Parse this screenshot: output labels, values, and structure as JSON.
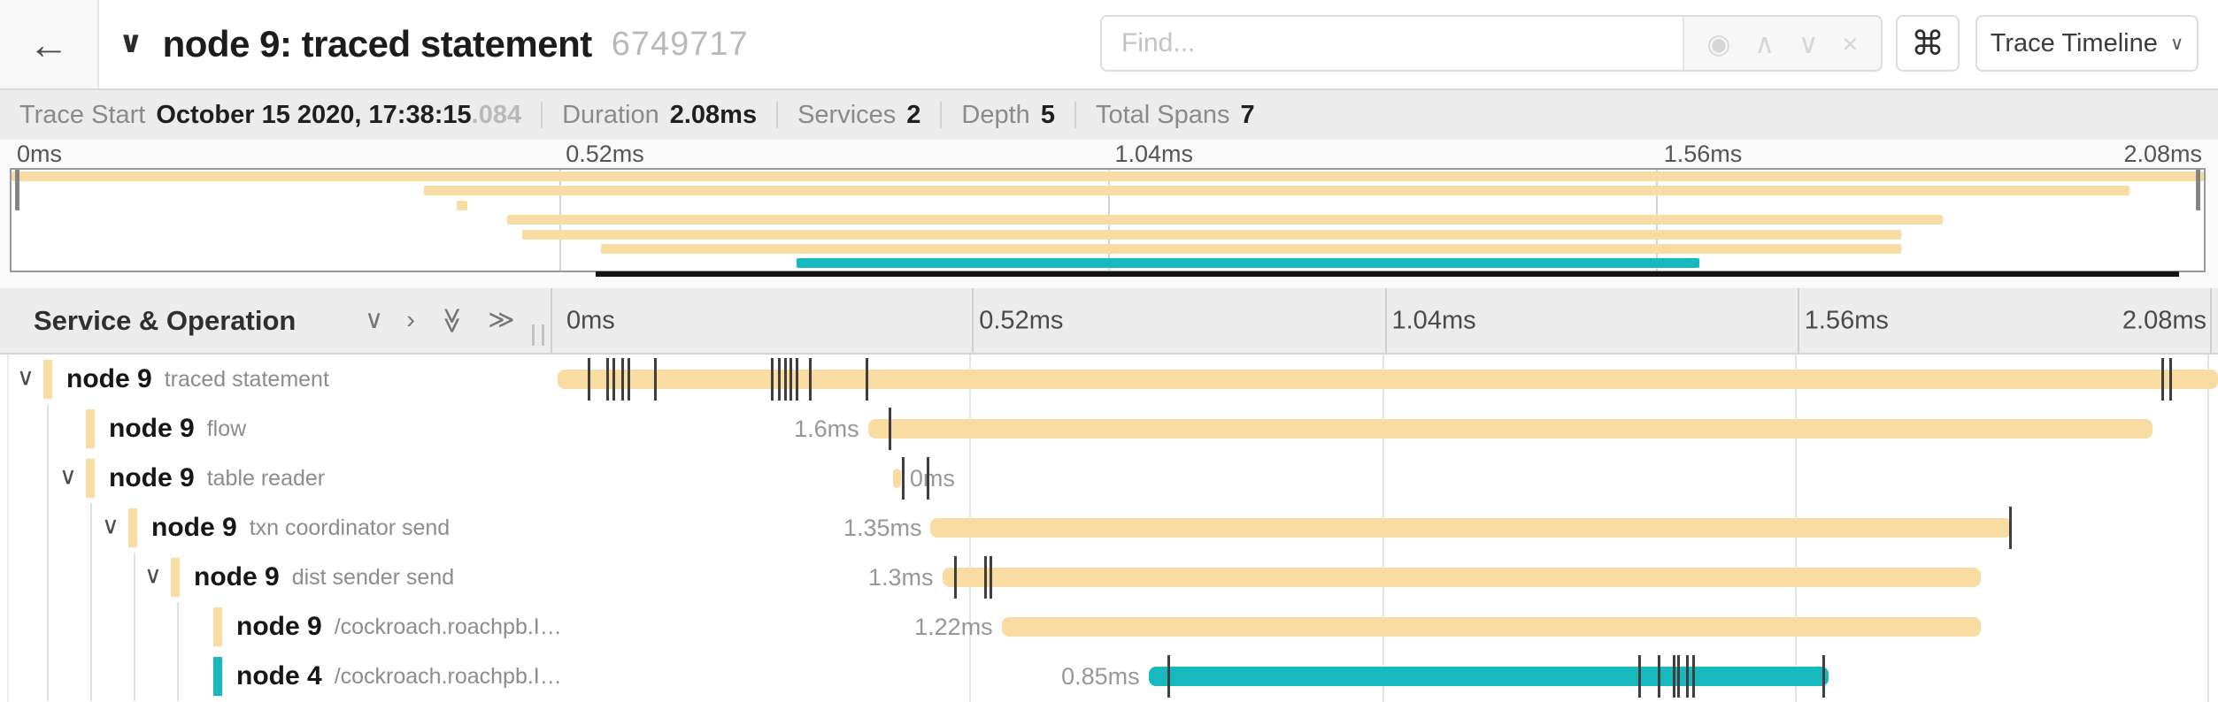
{
  "header": {
    "back_icon": "←",
    "collapse_icon": "∨",
    "title": "node 9: traced statement",
    "trace_id": "6749717",
    "find_placeholder": "Find...",
    "find_icons": [
      {
        "name": "match-target-icon",
        "glyph": "◉"
      },
      {
        "name": "prev-result-icon",
        "glyph": "∧"
      },
      {
        "name": "next-result-icon",
        "glyph": "∨"
      },
      {
        "name": "clear-search-icon",
        "glyph": "×"
      }
    ],
    "shortcut_button": "⌘",
    "view_dropdown": {
      "label": "Trace Timeline",
      "caret": "∨"
    }
  },
  "summary": {
    "items": [
      {
        "label": "Trace Start",
        "value": "October 15 2020, 17:38:15",
        "suffix": ".084"
      },
      {
        "label": "Duration",
        "value": "2.08ms"
      },
      {
        "label": "Services",
        "value": "2"
      },
      {
        "label": "Depth",
        "value": "5"
      },
      {
        "label": "Total Spans",
        "value": "7"
      }
    ]
  },
  "colors": {
    "amber": "#F8DCA1",
    "teal": "#17B8BE",
    "tick": "#3f3f3f"
  },
  "timeline": {
    "left_header": "Service & Operation",
    "collapse_icons": [
      {
        "name": "collapse-one-icon",
        "glyph": "∨",
        "rotate": false
      },
      {
        "name": "expand-one-icon",
        "glyph": "›",
        "rotate": false
      },
      {
        "name": "collapse-all-icon",
        "glyph": "≫",
        "rotate": true
      },
      {
        "name": "expand-all-icon",
        "glyph": "≫",
        "rotate": false
      }
    ],
    "row_collapse_glyph": "∨",
    "ticks": [
      {
        "label": "0ms",
        "pct": 0
      },
      {
        "label": "0.52ms",
        "pct": 25
      },
      {
        "label": "1.04ms",
        "pct": 50
      },
      {
        "label": "1.56ms",
        "pct": 75
      },
      {
        "label": "2.08ms",
        "pct": 100
      }
    ]
  },
  "spans": [
    {
      "service": "node 9",
      "operation": "traced statement",
      "depth": 0,
      "expandable": true,
      "color": "amber",
      "duration_label": "",
      "label_side": "none",
      "startPct": 0,
      "endPct": 100.6,
      "ticksPct": [
        1.9,
        3.0,
        3.4,
        3.9,
        4.3,
        5.9,
        13.0,
        13.4,
        13.8,
        14.1,
        14.5,
        15.3,
        18.7,
        97.2,
        97.7
      ]
    },
    {
      "service": "node 9",
      "operation": "flow",
      "depth": 1,
      "expandable": false,
      "color": "amber",
      "duration_label": "1.6ms",
      "label_side": "left",
      "startPct": 18.8,
      "endPct": 96.6,
      "ticksPct": [
        20.1
      ]
    },
    {
      "service": "node 9",
      "operation": "table reader",
      "depth": 1,
      "expandable": true,
      "color": "amber",
      "duration_label": "0ms",
      "label_side": "right",
      "startPct": 20.3,
      "endPct": 20.8,
      "ticksPct": [
        20.9,
        22.4
      ]
    },
    {
      "service": "node 9",
      "operation": "txn coordinator send",
      "depth": 2,
      "expandable": true,
      "color": "amber",
      "duration_label": "1.35ms",
      "label_side": "left",
      "startPct": 22.6,
      "endPct": 88.1,
      "ticksPct": [
        88.0
      ]
    },
    {
      "service": "node 9",
      "operation": "dist sender send",
      "depth": 3,
      "expandable": true,
      "color": "amber",
      "duration_label": "1.3ms",
      "label_side": "left",
      "startPct": 23.3,
      "endPct": 86.2,
      "ticksPct": [
        24.1,
        25.9,
        26.2
      ]
    },
    {
      "service": "node 9",
      "operation": "/cockroach.roachpb.I…",
      "depth": 4,
      "expandable": false,
      "color": "amber",
      "duration_label": "1.22ms",
      "label_side": "left",
      "startPct": 26.9,
      "endPct": 86.2,
      "ticksPct": []
    },
    {
      "service": "node 4",
      "operation": "/cockroach.roachpb.I…",
      "depth": 4,
      "expandable": false,
      "color": "teal",
      "duration_label": "0.85ms",
      "label_side": "left",
      "startPct": 35.8,
      "endPct": 77.0,
      "ticksPct": [
        37.0,
        65.5,
        66.7,
        67.6,
        67.9,
        68.4,
        68.8,
        76.7
      ]
    }
  ]
}
